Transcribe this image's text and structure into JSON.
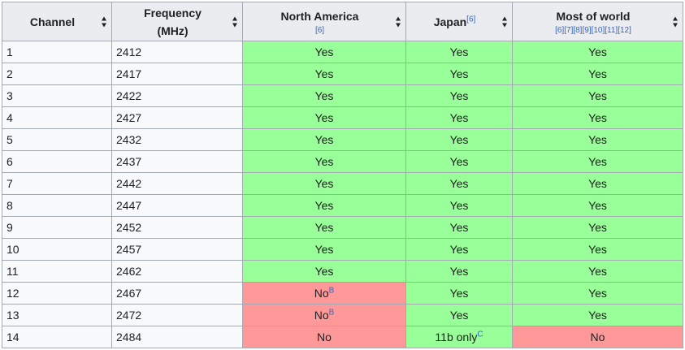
{
  "headers": [
    {
      "label": "Channel"
    },
    {
      "label": "Frequency",
      "sub": "(MHz)"
    },
    {
      "label": "North America",
      "refs": "[6]"
    },
    {
      "label": "Japan",
      "sup": "[6]"
    },
    {
      "label": "Most of world",
      "refs": "[6][7][8][9][10][11][12]"
    }
  ],
  "rows": [
    {
      "channel": "1",
      "freq": "2412",
      "na": "Yes",
      "jp": "Yes",
      "world": "Yes"
    },
    {
      "channel": "2",
      "freq": "2417",
      "na": "Yes",
      "jp": "Yes",
      "world": "Yes"
    },
    {
      "channel": "3",
      "freq": "2422",
      "na": "Yes",
      "jp": "Yes",
      "world": "Yes"
    },
    {
      "channel": "4",
      "freq": "2427",
      "na": "Yes",
      "jp": "Yes",
      "world": "Yes"
    },
    {
      "channel": "5",
      "freq": "2432",
      "na": "Yes",
      "jp": "Yes",
      "world": "Yes"
    },
    {
      "channel": "6",
      "freq": "2437",
      "na": "Yes",
      "jp": "Yes",
      "world": "Yes"
    },
    {
      "channel": "7",
      "freq": "2442",
      "na": "Yes",
      "jp": "Yes",
      "world": "Yes"
    },
    {
      "channel": "8",
      "freq": "2447",
      "na": "Yes",
      "jp": "Yes",
      "world": "Yes"
    },
    {
      "channel": "9",
      "freq": "2452",
      "na": "Yes",
      "jp": "Yes",
      "world": "Yes"
    },
    {
      "channel": "10",
      "freq": "2457",
      "na": "Yes",
      "jp": "Yes",
      "world": "Yes"
    },
    {
      "channel": "11",
      "freq": "2462",
      "na": "Yes",
      "jp": "Yes",
      "world": "Yes"
    },
    {
      "channel": "12",
      "freq": "2467",
      "na": "No",
      "na_sup": "B",
      "jp": "Yes",
      "world": "Yes"
    },
    {
      "channel": "13",
      "freq": "2472",
      "na": "No",
      "na_sup": "B",
      "jp": "Yes",
      "world": "Yes"
    },
    {
      "channel": "14",
      "freq": "2484",
      "na": "No",
      "jp": "11b only",
      "jp_sup": "C",
      "world": "No"
    }
  ],
  "colors": {
    "yes": "#99ff99",
    "no": "#ff9999",
    "header": "#eaecf0",
    "link": "#3366cc"
  }
}
